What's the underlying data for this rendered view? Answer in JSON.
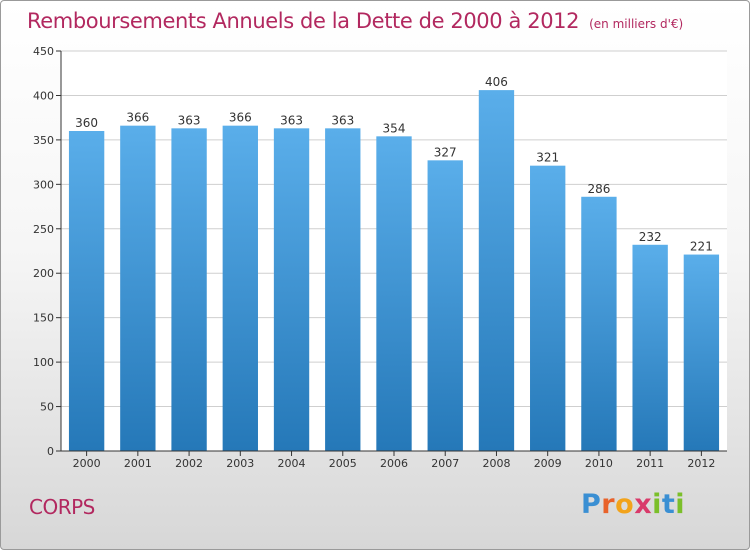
{
  "title": "Remboursements Annuels de la Dette de 2000 à 2012",
  "subtitle": "(en milliers d'€)",
  "commune": "CORPS",
  "brand": {
    "name": "Proxiti",
    "letters": [
      "P",
      "r",
      "o",
      "x",
      "i",
      "t",
      "i"
    ],
    "letter_colors": [
      "#3a8fd3",
      "#e8622a",
      "#f2a31b",
      "#d93a6a",
      "#7bbf2a",
      "#3a8fd3",
      "#7bbf2a"
    ]
  },
  "colors": {
    "title": "#b2285f",
    "bar_top": "#5aaeea",
    "bar_bottom": "#2578b8",
    "axis": "#333333",
    "grid": "#cfcfcf"
  },
  "chart_data": {
    "type": "bar",
    "categories": [
      "2000",
      "2001",
      "2002",
      "2003",
      "2004",
      "2005",
      "2006",
      "2007",
      "2008",
      "2009",
      "2010",
      "2011",
      "2012"
    ],
    "values": [
      360,
      366,
      363,
      366,
      363,
      363,
      354,
      327,
      406,
      321,
      286,
      232,
      221
    ],
    "ylim": [
      0,
      450
    ],
    "yticks": [
      0,
      50,
      100,
      150,
      200,
      250,
      300,
      350,
      400,
      450
    ],
    "grid": true,
    "data_labels": true
  }
}
